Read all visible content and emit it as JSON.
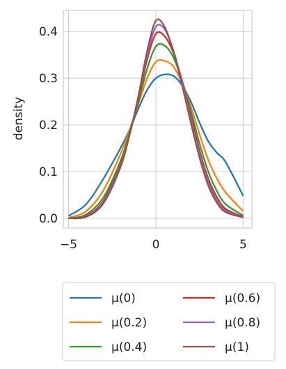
{
  "chart_data": {
    "type": "line",
    "title": "",
    "xlabel": "",
    "ylabel": "density",
    "xlim": [
      -5.3,
      5.5
    ],
    "ylim": [
      -0.021,
      0.445
    ],
    "xticks": [
      -5,
      0,
      5
    ],
    "xtick_labels": [
      "−5",
      "0",
      "5"
    ],
    "yticks": [
      0.0,
      0.1,
      0.2,
      0.3,
      0.4
    ],
    "ytick_labels": [
      "0.0",
      "0.1",
      "0.2",
      "0.3",
      "0.4"
    ],
    "grid": true,
    "legend_placement": "below plot, two columns",
    "x": [
      -5,
      -4,
      -3,
      -2,
      -1.5,
      -1,
      -0.5,
      0,
      0.5,
      1,
      1.5,
      2,
      2.5,
      3,
      3.5,
      4,
      5
    ],
    "series": [
      {
        "name": "μ(0)",
        "color": "#1f77b4",
        "values": [
          0.005,
          0.03,
          0.085,
          0.152,
          0.19,
          0.235,
          0.275,
          0.3,
          0.308,
          0.305,
          0.285,
          0.25,
          0.205,
          0.165,
          0.14,
          0.12,
          0.048
        ]
      },
      {
        "name": "μ(0.2)",
        "color": "#ff7f0e",
        "values": [
          0.001,
          0.015,
          0.06,
          0.14,
          0.19,
          0.245,
          0.3,
          0.335,
          0.337,
          0.325,
          0.29,
          0.24,
          0.18,
          0.125,
          0.085,
          0.055,
          0.015
        ]
      },
      {
        "name": "μ(0.4)",
        "color": "#2ca02c",
        "values": [
          0.0,
          0.008,
          0.045,
          0.125,
          0.185,
          0.25,
          0.32,
          0.368,
          0.37,
          0.345,
          0.295,
          0.23,
          0.16,
          0.1,
          0.058,
          0.03,
          0.006
        ]
      },
      {
        "name": "μ(0.6)",
        "color": "#d62728",
        "values": [
          0.0,
          0.005,
          0.038,
          0.118,
          0.18,
          0.255,
          0.34,
          0.395,
          0.39,
          0.355,
          0.295,
          0.22,
          0.145,
          0.085,
          0.045,
          0.02,
          0.003
        ]
      },
      {
        "name": "μ(0.8)",
        "color": "#9467bd",
        "values": [
          0.0,
          0.004,
          0.035,
          0.115,
          0.18,
          0.26,
          0.35,
          0.41,
          0.405,
          0.36,
          0.292,
          0.213,
          0.138,
          0.078,
          0.038,
          0.016,
          0.002
        ]
      },
      {
        "name": "μ(1)",
        "color": "#8c564b",
        "values": [
          0.0,
          0.003,
          0.032,
          0.112,
          0.18,
          0.262,
          0.358,
          0.423,
          0.41,
          0.358,
          0.285,
          0.205,
          0.13,
          0.07,
          0.033,
          0.013,
          0.002
        ]
      }
    ]
  }
}
